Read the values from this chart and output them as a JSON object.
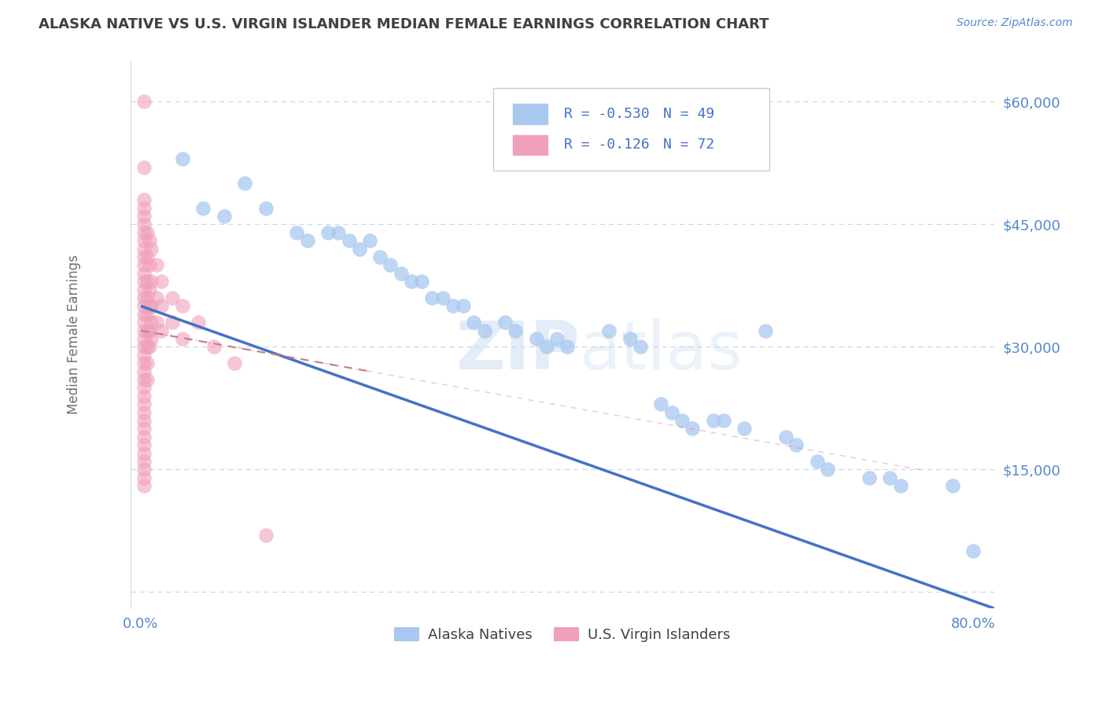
{
  "title": "ALASKA NATIVE VS U.S. VIRGIN ISLANDER MEDIAN FEMALE EARNINGS CORRELATION CHART",
  "source": "Source: ZipAtlas.com",
  "ylabel": "Median Female Earnings",
  "xlim": [
    -0.01,
    0.82
  ],
  "ylim": [
    -2000,
    65000
  ],
  "yticks": [
    0,
    15000,
    30000,
    45000,
    60000
  ],
  "ytick_labels": [
    "",
    "$15,000",
    "$30,000",
    "$45,000",
    "$60,000"
  ],
  "alaska_R": -0.53,
  "alaska_N": 49,
  "virgin_R": -0.126,
  "virgin_N": 72,
  "alaska_color": "#a8c8f0",
  "virgin_color": "#f0a0b8",
  "alaska_line_color": "#4472c4",
  "virgin_line_color": "#c87890",
  "legend_label_alaska": "Alaska Natives",
  "legend_label_virgin": "U.S. Virgin Islanders",
  "watermark_zip": "ZIP",
  "watermark_atlas": "atlas",
  "watermark_color_zip": "#c8daf0",
  "watermark_color_atlas": "#c8daf0",
  "title_color": "#404040",
  "axis_label_color": "#707070",
  "tick_color": "#5588cc",
  "grid_color": "#c8d8e8",
  "background_color": "#ffffff",
  "alaska_line_x0": 0.0,
  "alaska_line_y0": 35000,
  "alaska_line_x1": 0.82,
  "alaska_line_y1": -2000,
  "virgin_line_x0": 0.0,
  "virgin_line_y0": 32000,
  "virgin_line_x1": 0.22,
  "virgin_line_y1": 27000,
  "alaska_points": [
    [
      0.04,
      53000
    ],
    [
      0.06,
      47000
    ],
    [
      0.08,
      46000
    ],
    [
      0.1,
      50000
    ],
    [
      0.12,
      47000
    ],
    [
      0.15,
      44000
    ],
    [
      0.16,
      43000
    ],
    [
      0.18,
      44000
    ],
    [
      0.19,
      44000
    ],
    [
      0.2,
      43000
    ],
    [
      0.21,
      42000
    ],
    [
      0.22,
      43000
    ],
    [
      0.23,
      41000
    ],
    [
      0.24,
      40000
    ],
    [
      0.25,
      39000
    ],
    [
      0.26,
      38000
    ],
    [
      0.27,
      38000
    ],
    [
      0.28,
      36000
    ],
    [
      0.29,
      36000
    ],
    [
      0.3,
      35000
    ],
    [
      0.31,
      35000
    ],
    [
      0.32,
      33000
    ],
    [
      0.33,
      32000
    ],
    [
      0.35,
      33000
    ],
    [
      0.36,
      32000
    ],
    [
      0.38,
      31000
    ],
    [
      0.39,
      30000
    ],
    [
      0.4,
      31000
    ],
    [
      0.41,
      30000
    ],
    [
      0.45,
      32000
    ],
    [
      0.47,
      31000
    ],
    [
      0.48,
      30000
    ],
    [
      0.5,
      23000
    ],
    [
      0.51,
      22000
    ],
    [
      0.52,
      21000
    ],
    [
      0.53,
      20000
    ],
    [
      0.55,
      21000
    ],
    [
      0.56,
      21000
    ],
    [
      0.58,
      20000
    ],
    [
      0.6,
      32000
    ],
    [
      0.62,
      19000
    ],
    [
      0.63,
      18000
    ],
    [
      0.65,
      16000
    ],
    [
      0.66,
      15000
    ],
    [
      0.7,
      14000
    ],
    [
      0.72,
      14000
    ],
    [
      0.73,
      13000
    ],
    [
      0.78,
      13000
    ],
    [
      0.8,
      5000
    ]
  ],
  "virgin_points": [
    [
      0.003,
      52000
    ],
    [
      0.003,
      48000
    ],
    [
      0.003,
      47000
    ],
    [
      0.003,
      46000
    ],
    [
      0.003,
      45000
    ],
    [
      0.003,
      44000
    ],
    [
      0.003,
      43000
    ],
    [
      0.003,
      42000
    ],
    [
      0.003,
      41000
    ],
    [
      0.003,
      40000
    ],
    [
      0.003,
      39000
    ],
    [
      0.003,
      38000
    ],
    [
      0.003,
      37000
    ],
    [
      0.003,
      36000
    ],
    [
      0.003,
      35000
    ],
    [
      0.003,
      34000
    ],
    [
      0.003,
      33000
    ],
    [
      0.003,
      32000
    ],
    [
      0.003,
      31000
    ],
    [
      0.003,
      30000
    ],
    [
      0.003,
      29000
    ],
    [
      0.003,
      28000
    ],
    [
      0.003,
      27000
    ],
    [
      0.003,
      26000
    ],
    [
      0.003,
      25000
    ],
    [
      0.003,
      24000
    ],
    [
      0.003,
      23000
    ],
    [
      0.003,
      22000
    ],
    [
      0.003,
      21000
    ],
    [
      0.003,
      20000
    ],
    [
      0.003,
      19000
    ],
    [
      0.003,
      18000
    ],
    [
      0.003,
      17000
    ],
    [
      0.003,
      16000
    ],
    [
      0.003,
      15000
    ],
    [
      0.003,
      14000
    ],
    [
      0.003,
      13000
    ],
    [
      0.006,
      44000
    ],
    [
      0.006,
      41000
    ],
    [
      0.006,
      38000
    ],
    [
      0.006,
      36000
    ],
    [
      0.006,
      34000
    ],
    [
      0.006,
      32000
    ],
    [
      0.006,
      30000
    ],
    [
      0.006,
      28000
    ],
    [
      0.006,
      26000
    ],
    [
      0.008,
      43000
    ],
    [
      0.008,
      40000
    ],
    [
      0.008,
      37000
    ],
    [
      0.008,
      35000
    ],
    [
      0.008,
      32000
    ],
    [
      0.008,
      30000
    ],
    [
      0.01,
      42000
    ],
    [
      0.01,
      38000
    ],
    [
      0.01,
      35000
    ],
    [
      0.01,
      33000
    ],
    [
      0.01,
      31000
    ],
    [
      0.015,
      40000
    ],
    [
      0.015,
      36000
    ],
    [
      0.015,
      33000
    ],
    [
      0.02,
      38000
    ],
    [
      0.02,
      35000
    ],
    [
      0.02,
      32000
    ],
    [
      0.03,
      36000
    ],
    [
      0.03,
      33000
    ],
    [
      0.04,
      35000
    ],
    [
      0.04,
      31000
    ],
    [
      0.055,
      33000
    ],
    [
      0.07,
      30000
    ],
    [
      0.09,
      28000
    ],
    [
      0.12,
      7000
    ],
    [
      0.003,
      60000
    ]
  ]
}
